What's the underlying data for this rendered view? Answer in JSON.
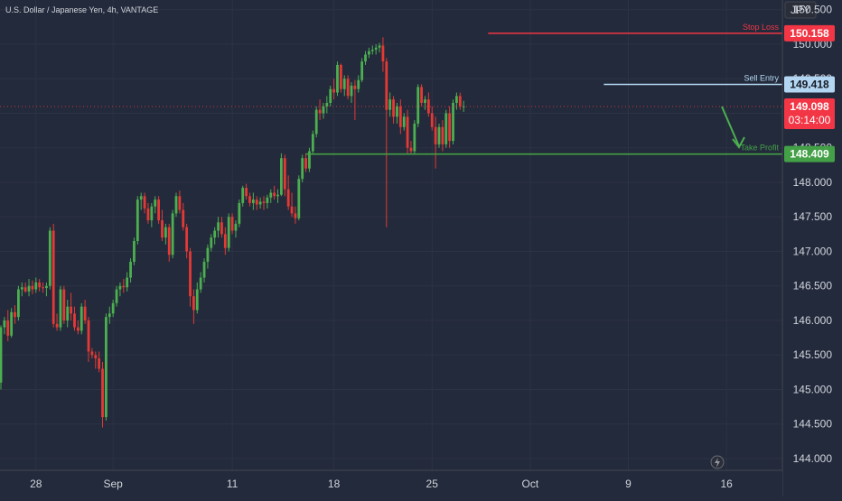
{
  "header": {
    "symbol_title": "U.S. Dollar / Japanese Yen, 4h, VANTAGE"
  },
  "currency_label": "JPY",
  "colors": {
    "background": "#232a3b",
    "up": "#4caf50",
    "down": "#e53935",
    "stop_loss": "#f23645",
    "sell_entry": "#b3d7f2",
    "take_profit": "#43a047",
    "last_price": "#f23645",
    "text": "#d1d4dc"
  },
  "chart_data": {
    "type": "candlestick",
    "title": "U.S. Dollar / Japanese Yen, 4h, VANTAGE",
    "xlabel": "",
    "ylabel": "",
    "ylim": [
      143.83,
      150.64
    ],
    "y_ticks": [
      "150.500",
      "150.000",
      "149.500",
      "149.000",
      "148.500",
      "148.000",
      "147.500",
      "147.000",
      "146.500",
      "146.000",
      "145.500",
      "145.000",
      "144.500",
      "144.000"
    ],
    "y_tick_values": [
      150.5,
      150.0,
      149.5,
      149.0,
      148.5,
      148.0,
      147.5,
      147.0,
      146.5,
      146.0,
      145.5,
      145.0,
      144.5,
      144.0
    ],
    "x_ticks": [
      {
        "label": "28",
        "bar": 10
      },
      {
        "label": "Sep",
        "bar": 32
      },
      {
        "label": "11",
        "bar": 66
      },
      {
        "label": "18",
        "bar": 95
      },
      {
        "label": "25",
        "bar": 123
      },
      {
        "label": "Oct",
        "bar": 151
      },
      {
        "label": "9",
        "bar": 179
      },
      {
        "label": "16",
        "bar": 207
      }
    ],
    "grid": true,
    "candles": [
      [
        145.1,
        145.93,
        145.0,
        145.9
      ],
      [
        145.9,
        146.05,
        145.8,
        146.0
      ],
      [
        146.0,
        146.15,
        145.7,
        145.78
      ],
      [
        145.78,
        146.18,
        145.75,
        146.12
      ],
      [
        146.12,
        146.22,
        145.95,
        146.05
      ],
      [
        146.05,
        146.5,
        146.0,
        146.45
      ],
      [
        146.45,
        146.55,
        146.35,
        146.48
      ],
      [
        146.48,
        146.55,
        146.4,
        146.42
      ],
      [
        146.42,
        146.6,
        146.35,
        146.5
      ],
      [
        146.5,
        146.58,
        146.38,
        146.45
      ],
      [
        146.45,
        146.62,
        146.4,
        146.55
      ],
      [
        146.55,
        146.6,
        146.42,
        146.48
      ],
      [
        146.48,
        146.55,
        146.4,
        146.47
      ],
      [
        146.47,
        146.55,
        146.35,
        146.5
      ],
      [
        146.5,
        147.35,
        146.45,
        147.3
      ],
      [
        147.3,
        147.4,
        145.9,
        145.95
      ],
      [
        145.95,
        146.1,
        145.85,
        145.9
      ],
      [
        145.9,
        146.5,
        145.85,
        146.45
      ],
      [
        146.45,
        146.5,
        145.95,
        146.0
      ],
      [
        146.0,
        146.3,
        145.9,
        146.2
      ],
      [
        146.2,
        146.4,
        146.0,
        146.1
      ],
      [
        146.1,
        146.2,
        145.85,
        145.9
      ],
      [
        145.9,
        146.0,
        145.8,
        145.85
      ],
      [
        145.85,
        146.25,
        145.8,
        146.2
      ],
      [
        146.2,
        146.3,
        145.95,
        146.0
      ],
      [
        146.0,
        146.05,
        145.4,
        145.55
      ],
      [
        145.55,
        145.6,
        145.45,
        145.5
      ],
      [
        145.5,
        145.55,
        145.3,
        145.45
      ],
      [
        145.45,
        145.55,
        145.25,
        145.3
      ],
      [
        145.3,
        145.4,
        144.45,
        144.6
      ],
      [
        144.6,
        146.1,
        144.55,
        146.05
      ],
      [
        146.05,
        146.2,
        145.95,
        146.1
      ],
      [
        146.1,
        146.3,
        146.05,
        146.25
      ],
      [
        146.25,
        146.5,
        146.2,
        146.45
      ],
      [
        146.45,
        146.55,
        146.35,
        146.5
      ],
      [
        146.5,
        146.6,
        146.4,
        146.48
      ],
      [
        146.48,
        146.7,
        146.42,
        146.62
      ],
      [
        146.62,
        146.9,
        146.55,
        146.85
      ],
      [
        146.85,
        147.2,
        146.8,
        147.15
      ],
      [
        147.15,
        147.8,
        147.1,
        147.75
      ],
      [
        147.75,
        147.85,
        147.6,
        147.8
      ],
      [
        147.8,
        147.85,
        147.55,
        147.62
      ],
      [
        147.62,
        147.7,
        147.4,
        147.45
      ],
      [
        147.45,
        147.7,
        147.35,
        147.65
      ],
      [
        147.65,
        147.8,
        147.55,
        147.75
      ],
      [
        147.75,
        147.8,
        147.4,
        147.45
      ],
      [
        147.45,
        147.6,
        147.15,
        147.2
      ],
      [
        147.2,
        147.4,
        147.1,
        147.35
      ],
      [
        147.35,
        147.4,
        146.85,
        146.95
      ],
      [
        146.95,
        147.6,
        146.9,
        147.55
      ],
      [
        147.55,
        147.85,
        147.5,
        147.8
      ],
      [
        147.8,
        147.88,
        147.55,
        147.6
      ],
      [
        147.6,
        147.7,
        147.3,
        147.35
      ],
      [
        147.35,
        147.4,
        146.9,
        147.0
      ],
      [
        147.0,
        147.05,
        146.2,
        146.35
      ],
      [
        146.35,
        146.45,
        145.95,
        146.15
      ],
      [
        146.15,
        146.55,
        146.1,
        146.45
      ],
      [
        146.45,
        146.7,
        146.4,
        146.62
      ],
      [
        146.62,
        146.9,
        146.55,
        146.85
      ],
      [
        146.85,
        147.1,
        146.75,
        147.05
      ],
      [
        147.05,
        147.25,
        147.0,
        147.2
      ],
      [
        147.2,
        147.35,
        147.1,
        147.3
      ],
      [
        147.3,
        147.5,
        147.2,
        147.42
      ],
      [
        147.42,
        147.5,
        147.2,
        147.25
      ],
      [
        147.25,
        147.35,
        146.95,
        147.05
      ],
      [
        147.05,
        147.55,
        147.0,
        147.5
      ],
      [
        147.5,
        147.55,
        147.25,
        147.3
      ],
      [
        147.3,
        147.45,
        147.2,
        147.4
      ],
      [
        147.4,
        147.75,
        147.35,
        147.7
      ],
      [
        147.7,
        147.95,
        147.65,
        147.92
      ],
      [
        147.92,
        147.98,
        147.75,
        147.8
      ],
      [
        147.8,
        147.85,
        147.65,
        147.7
      ],
      [
        147.7,
        147.85,
        147.6,
        147.75
      ],
      [
        147.75,
        147.8,
        147.6,
        147.68
      ],
      [
        147.68,
        147.78,
        147.62,
        147.72
      ],
      [
        147.72,
        147.8,
        147.6,
        147.7
      ],
      [
        147.7,
        147.82,
        147.62,
        147.78
      ],
      [
        147.78,
        147.9,
        147.7,
        147.85
      ],
      [
        147.85,
        147.95,
        147.75,
        147.8
      ],
      [
        147.8,
        147.9,
        147.7,
        147.82
      ],
      [
        147.82,
        148.42,
        147.8,
        148.35
      ],
      [
        148.35,
        148.4,
        147.8,
        147.9
      ],
      [
        147.9,
        148.1,
        147.6,
        147.65
      ],
      [
        147.65,
        147.85,
        147.5,
        147.55
      ],
      [
        147.55,
        147.65,
        147.4,
        147.48
      ],
      [
        147.48,
        148.1,
        147.45,
        148.05
      ],
      [
        148.05,
        148.4,
        148.0,
        148.35
      ],
      [
        148.35,
        148.42,
        148.15,
        148.2
      ],
      [
        148.2,
        148.5,
        148.15,
        148.45
      ],
      [
        148.45,
        148.75,
        148.4,
        148.7
      ],
      [
        148.7,
        149.1,
        148.65,
        149.05
      ],
      [
        149.05,
        149.2,
        148.9,
        149.0
      ],
      [
        149.0,
        149.15,
        148.92,
        149.1
      ],
      [
        149.1,
        149.25,
        149.0,
        149.15
      ],
      [
        149.15,
        149.4,
        149.1,
        149.35
      ],
      [
        149.35,
        149.5,
        149.2,
        149.3
      ],
      [
        149.3,
        149.75,
        149.25,
        149.7
      ],
      [
        149.7,
        149.72,
        149.3,
        149.35
      ],
      [
        149.35,
        149.55,
        149.25,
        149.5
      ],
      [
        149.5,
        149.55,
        149.2,
        149.25
      ],
      [
        149.25,
        149.45,
        149.15,
        149.4
      ],
      [
        149.4,
        149.48,
        148.9,
        149.35
      ],
      [
        149.35,
        149.55,
        149.3,
        149.48
      ],
      [
        149.48,
        149.8,
        149.45,
        149.75
      ],
      [
        149.75,
        149.9,
        149.7,
        149.85
      ],
      [
        149.85,
        149.95,
        149.8,
        149.9
      ],
      [
        149.9,
        149.98,
        149.85,
        149.92
      ],
      [
        149.92,
        150.0,
        149.85,
        149.95
      ],
      [
        149.95,
        150.02,
        149.88,
        149.98
      ],
      [
        149.98,
        150.1,
        149.6,
        149.75
      ],
      [
        149.75,
        149.8,
        147.35,
        149.05
      ],
      [
        149.05,
        149.3,
        148.95,
        149.2
      ],
      [
        149.2,
        149.25,
        148.85,
        148.95
      ],
      [
        148.95,
        149.15,
        148.85,
        149.1
      ],
      [
        149.1,
        149.2,
        148.7,
        148.8
      ],
      [
        148.8,
        149.0,
        148.75,
        148.95
      ],
      [
        148.95,
        149.05,
        148.4,
        148.5
      ],
      [
        148.5,
        148.6,
        148.4,
        148.45
      ],
      [
        148.45,
        148.9,
        148.4,
        148.85
      ],
      [
        148.85,
        149.42,
        148.8,
        149.38
      ],
      [
        149.38,
        149.42,
        149.1,
        149.15
      ],
      [
        149.15,
        149.25,
        149.05,
        149.2
      ],
      [
        149.2,
        149.3,
        148.95,
        149.0
      ],
      [
        149.0,
        149.1,
        148.75,
        148.8
      ],
      [
        148.8,
        148.95,
        148.2,
        148.55
      ],
      [
        148.55,
        148.85,
        148.5,
        148.8
      ],
      [
        148.8,
        148.9,
        148.45,
        148.55
      ],
      [
        148.55,
        149.05,
        148.5,
        149.0
      ],
      [
        149.0,
        149.1,
        148.5,
        148.6
      ],
      [
        148.6,
        149.2,
        148.55,
        149.15
      ],
      [
        149.15,
        149.3,
        149.05,
        149.25
      ],
      [
        149.25,
        149.3,
        149.05,
        149.1
      ],
      [
        149.1,
        149.18,
        149.02,
        149.1
      ]
    ],
    "levels": [
      {
        "name": "Stop Loss",
        "value": 150.158,
        "label": "150.158",
        "start_bar": 139
      },
      {
        "name": "Sell Entry",
        "value": 149.418,
        "label": "149.418",
        "start_bar": 172
      },
      {
        "name": "Take Profit",
        "value": 148.409,
        "label": "148.409",
        "start_bar": 87
      }
    ],
    "last_price": {
      "value": 149.098,
      "label": "149.098",
      "countdown": "03:14:00"
    }
  }
}
